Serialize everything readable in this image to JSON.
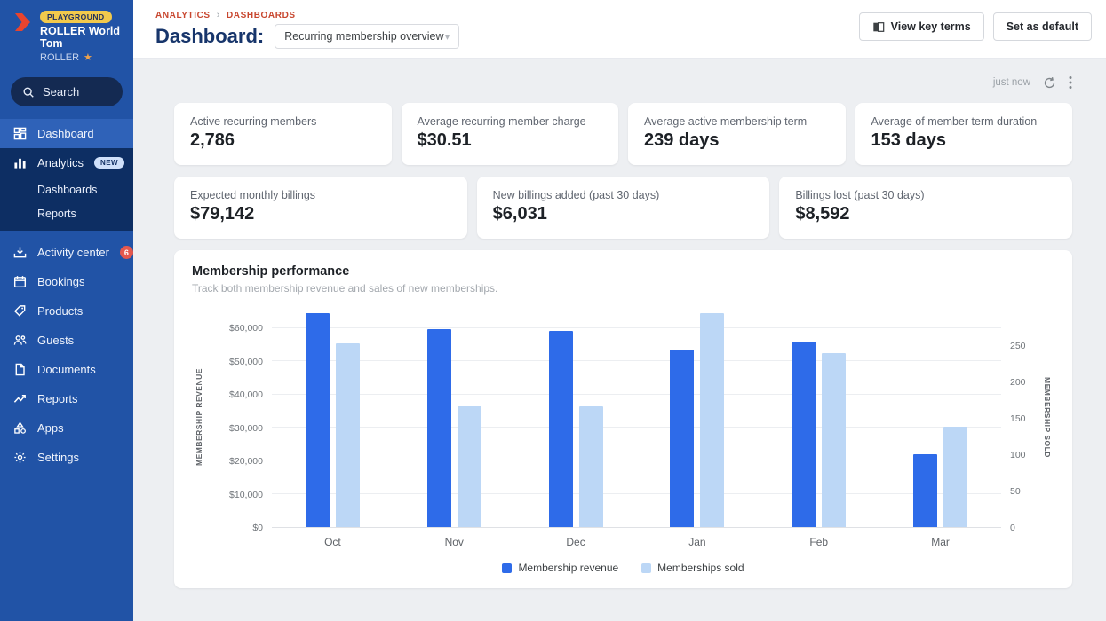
{
  "sidebar": {
    "environment_badge": "PLAYGROUND",
    "account_name": "ROLLER World Tom",
    "venue_name": "ROLLER",
    "search_label": "Search",
    "items": [
      {
        "label": "Dashboard"
      },
      {
        "label": "Analytics",
        "badge": "NEW"
      },
      {
        "label": "Dashboards"
      },
      {
        "label": "Reports"
      },
      {
        "label": "Activity center",
        "badge": "6"
      },
      {
        "label": "Bookings"
      },
      {
        "label": "Products"
      },
      {
        "label": "Guests"
      },
      {
        "label": "Documents"
      },
      {
        "label": "Reports"
      },
      {
        "label": "Apps"
      },
      {
        "label": "Settings"
      }
    ]
  },
  "header": {
    "breadcrumb": [
      "ANALYTICS",
      "DASHBOARDS"
    ],
    "title": "Dashboard:",
    "dashboard_select_value": "Recurring membership overview",
    "view_key_terms_label": "View key terms",
    "set_default_label": "Set as default"
  },
  "toolbar": {
    "last_refreshed": "just now"
  },
  "kpis_row1": [
    {
      "label": "Active recurring members",
      "value": "2,786"
    },
    {
      "label": "Average recurring member charge",
      "value": "$30.51"
    },
    {
      "label": "Average active membership term",
      "value": "239 days"
    },
    {
      "label": "Average of member term duration",
      "value": "153 days"
    }
  ],
  "kpis_row2": [
    {
      "label": "Expected monthly billings",
      "value": "$79,142"
    },
    {
      "label": "New billings added (past 30 days)",
      "value": "$6,031"
    },
    {
      "label": "Billings lost (past 30 days)",
      "value": "$8,592"
    }
  ],
  "chart": {
    "title": "Membership performance",
    "subtitle": "Track both membership revenue and sales of new memberships."
  },
  "chart_data": {
    "type": "bar",
    "categories": [
      "Oct",
      "Nov",
      "Dec",
      "Jan",
      "Feb",
      "Mar"
    ],
    "series": [
      {
        "name": "Membership revenue",
        "axis": "left",
        "color": "#2e6be9",
        "values": [
          64500,
          59800,
          59200,
          53600,
          56000,
          21900
        ]
      },
      {
        "name": "Memberships sold",
        "axis": "right",
        "color": "#bcd7f6",
        "values": [
          253,
          167,
          167,
          295,
          240,
          139
        ]
      }
    ],
    "left_axis": {
      "label": "MEMBERSHIP REVENUE",
      "tick_values": [
        0,
        10000,
        20000,
        30000,
        40000,
        50000,
        60000
      ],
      "ticks": [
        "$0",
        "$10,000",
        "$20,000",
        "$30,000",
        "$40,000",
        "$50,000",
        "$60,000"
      ],
      "plot_max": 66400
    },
    "right_axis": {
      "label": "MEMBERSHIP SOLD",
      "tick_values": [
        0,
        50,
        100,
        150,
        200,
        250
      ],
      "ticks": [
        "0",
        "50",
        "100",
        "150",
        "200",
        "250"
      ],
      "plot_max": 303.7
    },
    "legend": [
      "Membership revenue",
      "Memberships sold"
    ],
    "legend_position": "bottom",
    "grid": true
  },
  "colors": {
    "brand_red": "#e8442e",
    "sidebar_blue": "#2153a6",
    "sidebar_dark_section": "#0d2e63",
    "sidebar_active_item": "#2f62b8",
    "breadcrumb_accent": "#c8472f",
    "title_navy": "#17356b",
    "bar_revenue": "#2e6be9",
    "bar_sold": "#bcd7f6",
    "badge_yellow": "#f2c94c",
    "badge_red": "#e4584d",
    "badge_new_bg": "#cfe0fa"
  }
}
